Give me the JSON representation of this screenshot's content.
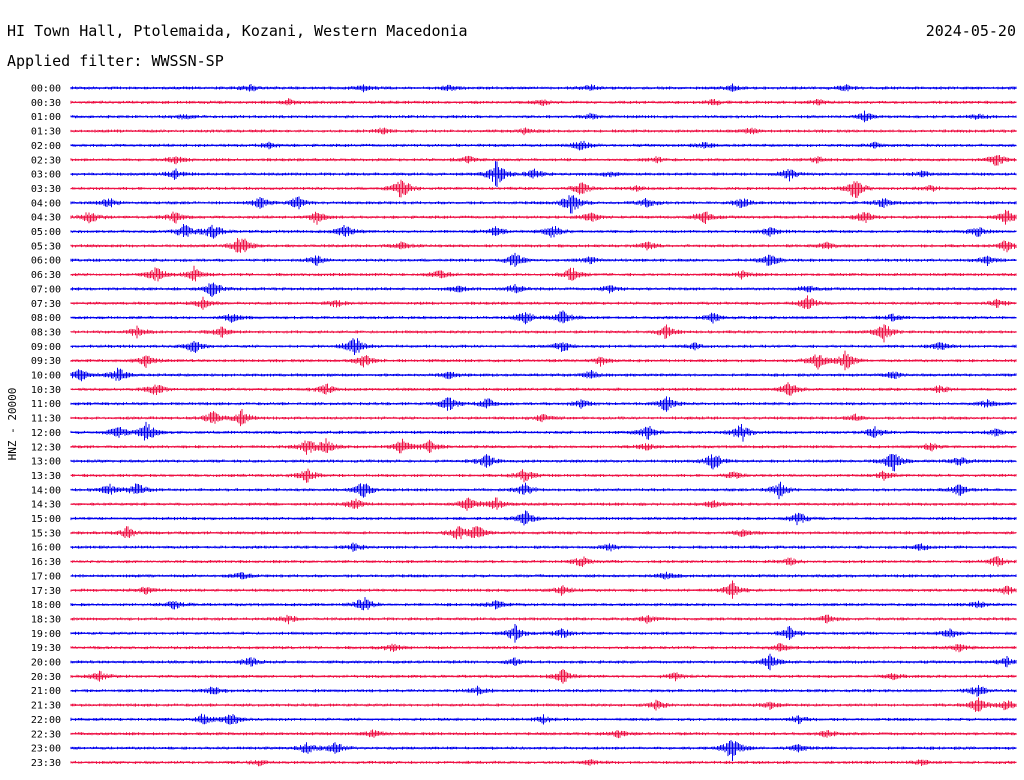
{
  "header": {
    "station": "HI Town Hall, Ptolemaida, Kozani, Western Macedonia",
    "date": "2024-05-20",
    "filter": "Applied filter: WWSSN-SP"
  },
  "chart_data": {
    "type": "line",
    "title": "HI Town Hall, Ptolemaida, Kozani, Western Macedonia",
    "ylabel": "HNZ - 20000",
    "colors": [
      "#0000ee",
      "#ee1144"
    ],
    "grid": false,
    "rows": [
      {
        "time": "00:00",
        "bursts": [
          [
            19,
            4
          ],
          [
            31,
            3
          ],
          [
            40,
            3
          ],
          [
            55,
            3
          ],
          [
            70,
            3
          ],
          [
            82,
            3
          ]
        ]
      },
      {
        "time": "00:30",
        "bursts": [
          [
            23,
            3
          ],
          [
            50,
            3
          ],
          [
            68,
            3
          ],
          [
            79,
            3
          ]
        ]
      },
      {
        "time": "01:00",
        "bursts": [
          [
            12,
            3
          ],
          [
            55,
            3
          ],
          [
            84,
            5
          ],
          [
            96,
            3
          ]
        ]
      },
      {
        "time": "01:30",
        "bursts": [
          [
            33,
            3
          ],
          [
            48,
            3
          ],
          [
            72,
            3
          ]
        ]
      },
      {
        "time": "02:00",
        "bursts": [
          [
            21,
            3
          ],
          [
            54,
            6
          ],
          [
            67,
            3
          ],
          [
            85,
            3
          ]
        ]
      },
      {
        "time": "02:30",
        "bursts": [
          [
            11,
            4
          ],
          [
            42,
            4
          ],
          [
            62,
            3
          ],
          [
            79,
            3
          ],
          [
            98,
            7
          ]
        ]
      },
      {
        "time": "03:00",
        "bursts": [
          [
            11,
            5
          ],
          [
            45,
            14
          ],
          [
            49,
            5
          ],
          [
            57,
            3
          ],
          [
            76,
            7
          ],
          [
            90,
            3
          ]
        ]
      },
      {
        "time": "03:30",
        "bursts": [
          [
            35,
            12
          ],
          [
            54,
            7
          ],
          [
            60,
            3
          ],
          [
            83,
            12
          ],
          [
            91,
            3
          ]
        ]
      },
      {
        "time": "04:00",
        "bursts": [
          [
            4,
            5
          ],
          [
            20,
            6
          ],
          [
            24,
            7
          ],
          [
            53,
            14
          ],
          [
            61,
            5
          ],
          [
            71,
            6
          ],
          [
            86,
            5
          ]
        ]
      },
      {
        "time": "04:30",
        "bursts": [
          [
            2,
            7
          ],
          [
            11,
            6
          ],
          [
            26,
            7
          ],
          [
            55,
            5
          ],
          [
            67,
            8
          ],
          [
            84,
            7
          ],
          [
            99,
            8
          ]
        ]
      },
      {
        "time": "05:00",
        "bursts": [
          [
            12,
            8
          ],
          [
            15,
            10
          ],
          [
            29,
            7
          ],
          [
            45,
            5
          ],
          [
            51,
            7
          ],
          [
            74,
            5
          ],
          [
            96,
            6
          ]
        ]
      },
      {
        "time": "05:30",
        "bursts": [
          [
            18,
            12
          ],
          [
            35,
            4
          ],
          [
            61,
            5
          ],
          [
            80,
            4
          ],
          [
            99,
            6
          ]
        ]
      },
      {
        "time": "06:00",
        "bursts": [
          [
            26,
            5
          ],
          [
            47,
            8
          ],
          [
            55,
            4
          ],
          [
            74,
            7
          ],
          [
            97,
            5
          ]
        ]
      },
      {
        "time": "06:30",
        "bursts": [
          [
            9,
            9
          ],
          [
            13,
            8
          ],
          [
            39,
            5
          ],
          [
            53,
            8
          ],
          [
            71,
            4
          ]
        ]
      },
      {
        "time": "07:00",
        "bursts": [
          [
            15,
            9
          ],
          [
            41,
            4
          ],
          [
            47,
            5
          ],
          [
            57,
            4
          ],
          [
            78,
            4
          ]
        ]
      },
      {
        "time": "07:30",
        "bursts": [
          [
            14,
            6
          ],
          [
            28,
            4
          ],
          [
            78,
            9
          ],
          [
            98,
            4
          ]
        ]
      },
      {
        "time": "08:00",
        "bursts": [
          [
            17,
            5
          ],
          [
            48,
            7
          ],
          [
            52,
            8
          ],
          [
            68,
            5
          ],
          [
            87,
            4
          ]
        ]
      },
      {
        "time": "08:30",
        "bursts": [
          [
            7,
            6
          ],
          [
            16,
            5
          ],
          [
            63,
            7
          ],
          [
            86,
            12
          ]
        ]
      },
      {
        "time": "09:00",
        "bursts": [
          [
            13,
            7
          ],
          [
            30,
            12
          ],
          [
            52,
            6
          ],
          [
            66,
            4
          ],
          [
            92,
            5
          ]
        ]
      },
      {
        "time": "09:30",
        "bursts": [
          [
            8,
            7
          ],
          [
            31,
            8
          ],
          [
            56,
            5
          ],
          [
            79,
            9
          ],
          [
            82,
            10
          ]
        ]
      },
      {
        "time": "10:00",
        "bursts": [
          [
            1,
            7
          ],
          [
            5,
            8
          ],
          [
            40,
            4
          ],
          [
            55,
            4
          ],
          [
            87,
            4
          ]
        ]
      },
      {
        "time": "10:30",
        "bursts": [
          [
            9,
            7
          ],
          [
            27,
            6
          ],
          [
            76,
            8
          ],
          [
            92,
            4
          ]
        ]
      },
      {
        "time": "11:00",
        "bursts": [
          [
            40,
            8
          ],
          [
            44,
            6
          ],
          [
            54,
            4
          ],
          [
            63,
            10
          ],
          [
            97,
            4
          ]
        ]
      },
      {
        "time": "11:30",
        "bursts": [
          [
            15,
            7
          ],
          [
            18,
            9
          ],
          [
            50,
            4
          ],
          [
            83,
            4
          ]
        ]
      },
      {
        "time": "12:00",
        "bursts": [
          [
            5,
            7
          ],
          [
            8,
            11
          ],
          [
            61,
            8
          ],
          [
            71,
            10
          ],
          [
            85,
            6
          ],
          [
            98,
            4
          ]
        ]
      },
      {
        "time": "12:30",
        "bursts": [
          [
            25,
            8
          ],
          [
            27,
            8
          ],
          [
            35,
            9
          ],
          [
            38,
            7
          ],
          [
            61,
            4
          ],
          [
            91,
            4
          ]
        ]
      },
      {
        "time": "13:00",
        "bursts": [
          [
            44,
            8
          ],
          [
            68,
            10
          ],
          [
            87,
            12
          ],
          [
            94,
            5
          ]
        ]
      },
      {
        "time": "13:30",
        "bursts": [
          [
            25,
            8
          ],
          [
            48,
            7
          ],
          [
            70,
            4
          ],
          [
            86,
            5
          ]
        ]
      },
      {
        "time": "14:00",
        "bursts": [
          [
            4,
            6
          ],
          [
            7,
            8
          ],
          [
            31,
            10
          ],
          [
            48,
            7
          ],
          [
            75,
            9
          ],
          [
            94,
            6
          ]
        ]
      },
      {
        "time": "14:30",
        "bursts": [
          [
            30,
            7
          ],
          [
            42,
            8
          ],
          [
            45,
            6
          ],
          [
            68,
            4
          ]
        ]
      },
      {
        "time": "15:00",
        "bursts": [
          [
            48,
            9
          ],
          [
            77,
            8
          ]
        ]
      },
      {
        "time": "15:30",
        "bursts": [
          [
            6,
            7
          ],
          [
            41,
            8
          ],
          [
            43,
            9
          ],
          [
            71,
            4
          ]
        ]
      },
      {
        "time": "16:00",
        "bursts": [
          [
            30,
            4
          ],
          [
            57,
            4
          ],
          [
            90,
            4
          ]
        ]
      },
      {
        "time": "16:30",
        "bursts": [
          [
            54,
            6
          ],
          [
            76,
            4
          ],
          [
            98,
            6
          ]
        ]
      },
      {
        "time": "17:00",
        "bursts": [
          [
            18,
            4
          ],
          [
            63,
            4
          ]
        ]
      },
      {
        "time": "17:30",
        "bursts": [
          [
            8,
            4
          ],
          [
            52,
            5
          ],
          [
            70,
            9
          ],
          [
            99,
            5
          ]
        ]
      },
      {
        "time": "18:00",
        "bursts": [
          [
            11,
            5
          ],
          [
            31,
            9
          ],
          [
            45,
            5
          ],
          [
            96,
            4
          ]
        ]
      },
      {
        "time": "18:30",
        "bursts": [
          [
            23,
            4
          ],
          [
            61,
            4
          ],
          [
            80,
            4
          ]
        ]
      },
      {
        "time": "19:00",
        "bursts": [
          [
            47,
            9
          ],
          [
            52,
            5
          ],
          [
            76,
            7
          ],
          [
            93,
            5
          ]
        ]
      },
      {
        "time": "19:30",
        "bursts": [
          [
            34,
            4
          ],
          [
            75,
            4
          ],
          [
            94,
            4
          ]
        ]
      },
      {
        "time": "20:00",
        "bursts": [
          [
            19,
            6
          ],
          [
            47,
            4
          ],
          [
            74,
            8
          ],
          [
            99,
            5
          ]
        ]
      },
      {
        "time": "20:30",
        "bursts": [
          [
            3,
            5
          ],
          [
            52,
            8
          ],
          [
            64,
            4
          ],
          [
            87,
            4
          ]
        ]
      },
      {
        "time": "21:00",
        "bursts": [
          [
            15,
            4
          ],
          [
            43,
            4
          ],
          [
            96,
            6
          ]
        ]
      },
      {
        "time": "21:30",
        "bursts": [
          [
            62,
            5
          ],
          [
            74,
            4
          ],
          [
            96,
            9
          ],
          [
            99,
            6
          ]
        ]
      },
      {
        "time": "22:00",
        "bursts": [
          [
            14,
            6
          ],
          [
            17,
            7
          ],
          [
            50,
            4
          ],
          [
            77,
            4
          ]
        ]
      },
      {
        "time": "22:30",
        "bursts": [
          [
            32,
            4
          ],
          [
            58,
            4
          ],
          [
            80,
            4
          ]
        ]
      },
      {
        "time": "23:00",
        "bursts": [
          [
            25,
            6
          ],
          [
            28,
            6
          ],
          [
            70,
            14
          ],
          [
            77,
            4
          ]
        ]
      },
      {
        "time": "23:30",
        "bursts": [
          [
            20,
            3
          ],
          [
            55,
            3
          ],
          [
            90,
            3
          ]
        ]
      }
    ]
  }
}
